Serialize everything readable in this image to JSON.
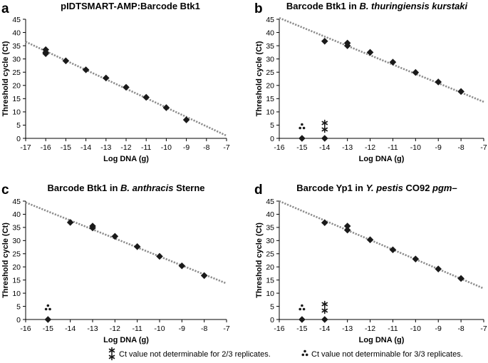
{
  "chart_data": [
    {
      "panel": "a",
      "type": "scatter",
      "title": [
        "pIDTSMART-AMP:Barcode Btk1"
      ],
      "title_italic": [
        false
      ],
      "xlabel": "Log DNA (g)",
      "ylabel": "Threshold cycle (Ct)",
      "xlim": [
        -17,
        -7
      ],
      "ylim": [
        0,
        45
      ],
      "xticks": [
        -17,
        -16,
        -15,
        -14,
        -13,
        -12,
        -11,
        -10,
        -9,
        -8,
        -7
      ],
      "yticks": [
        0,
        5,
        10,
        15,
        20,
        25,
        30,
        35,
        40,
        45
      ],
      "points": [
        {
          "x": -16,
          "y": 33.5
        },
        {
          "x": -16,
          "y": 32.5
        },
        {
          "x": -16,
          "y": 32.0
        },
        {
          "x": -15,
          "y": 29.3
        },
        {
          "x": -14,
          "y": 25.9
        },
        {
          "x": -13,
          "y": 22.8
        },
        {
          "x": -12,
          "y": 19.3
        },
        {
          "x": -11,
          "y": 15.5
        },
        {
          "x": -10,
          "y": 11.6
        },
        {
          "x": -9,
          "y": 7.0
        }
      ],
      "trendline": {
        "x": [
          -17,
          -7
        ],
        "y": [
          36.5,
          1.0
        ]
      },
      "undeterminable": []
    },
    {
      "panel": "b",
      "type": "scatter",
      "title": [
        "Barcode Btk1 in ",
        "B. thuringiensis kurstaki"
      ],
      "title_italic": [
        false,
        true
      ],
      "xlabel": "Log DNA (g)",
      "ylabel": "Threshold cycle (Ct)",
      "xlim": [
        -16,
        -7
      ],
      "ylim": [
        0,
        45
      ],
      "xticks": [
        -16,
        -15,
        -14,
        -13,
        -12,
        -11,
        -10,
        -9,
        -8,
        -7
      ],
      "yticks": [
        0,
        5,
        10,
        15,
        20,
        25,
        30,
        35,
        40,
        45
      ],
      "points": [
        {
          "x": -14,
          "y": 36.7
        },
        {
          "x": -13,
          "y": 36.0
        },
        {
          "x": -13,
          "y": 35.0
        },
        {
          "x": -12,
          "y": 32.5
        },
        {
          "x": -11,
          "y": 28.8
        },
        {
          "x": -10,
          "y": 24.9
        },
        {
          "x": -9,
          "y": 21.3
        },
        {
          "x": -8,
          "y": 17.7
        }
      ],
      "trendline": {
        "x": [
          -16,
          -7
        ],
        "y": [
          45.5,
          13.8
        ]
      },
      "undeterminable": [
        {
          "x": -15,
          "type": "3/3"
        },
        {
          "x": -14,
          "type": "2/3"
        }
      ]
    },
    {
      "panel": "c",
      "type": "scatter",
      "title": [
        "Barcode Btk1 in ",
        "B. anthracis",
        " Sterne"
      ],
      "title_italic": [
        false,
        true,
        false
      ],
      "xlabel": "Log DNA (g)",
      "ylabel": "Threshold cycle (Ct)",
      "xlim": [
        -16,
        -7
      ],
      "ylim": [
        0,
        45
      ],
      "xticks": [
        -16,
        -15,
        -14,
        -13,
        -12,
        -11,
        -10,
        -9,
        -8,
        -7
      ],
      "yticks": [
        0,
        5,
        10,
        15,
        20,
        25,
        30,
        35,
        40,
        45
      ],
      "points": [
        {
          "x": -14,
          "y": 36.9
        },
        {
          "x": -13,
          "y": 35.5
        },
        {
          "x": -13,
          "y": 34.8
        },
        {
          "x": -12,
          "y": 31.6
        },
        {
          "x": -11,
          "y": 27.7
        },
        {
          "x": -10,
          "y": 24.0
        },
        {
          "x": -9,
          "y": 20.4
        },
        {
          "x": -8,
          "y": 16.7
        }
      ],
      "trendline": {
        "x": [
          -16,
          -7
        ],
        "y": [
          44.5,
          13.7
        ]
      },
      "undeterminable": [
        {
          "x": -15,
          "type": "3/3"
        }
      ]
    },
    {
      "panel": "d",
      "type": "scatter",
      "title": [
        "Barcode Yp1 in ",
        "Y. pestis",
        " CO92 ",
        "pgm–"
      ],
      "title_italic": [
        false,
        true,
        false,
        true
      ],
      "xlabel": "Log DNA (g)",
      "ylabel": "Threshold cycle (Ct)",
      "xlim": [
        -16,
        -7
      ],
      "ylim": [
        0,
        45
      ],
      "xticks": [
        -16,
        -15,
        -14,
        -13,
        -12,
        -11,
        -10,
        -9,
        -8,
        -7
      ],
      "yticks": [
        0,
        5,
        10,
        15,
        20,
        25,
        30,
        35,
        40,
        45
      ],
      "points": [
        {
          "x": -14,
          "y": 36.8
        },
        {
          "x": -13,
          "y": 35.5
        },
        {
          "x": -13,
          "y": 34.0
        },
        {
          "x": -12,
          "y": 30.3
        },
        {
          "x": -11,
          "y": 26.5
        },
        {
          "x": -10,
          "y": 23.0
        },
        {
          "x": -9,
          "y": 19.2
        },
        {
          "x": -8,
          "y": 15.6
        }
      ],
      "trendline": {
        "x": [
          -16,
          -7
        ],
        "y": [
          45.0,
          11.8
        ]
      },
      "undeterminable": [
        {
          "x": -15,
          "type": "3/3"
        },
        {
          "x": -14,
          "type": "2/3"
        }
      ]
    }
  ],
  "legend": {
    "two_of_three": "Ct value not determinable for 2/3 replicates.",
    "three_of_three": "Ct value not determinable for 3/3 replicates."
  },
  "colors": {
    "marker": "#1a1a1a",
    "trendline": "#8c8c8c",
    "axis": "#000000"
  }
}
